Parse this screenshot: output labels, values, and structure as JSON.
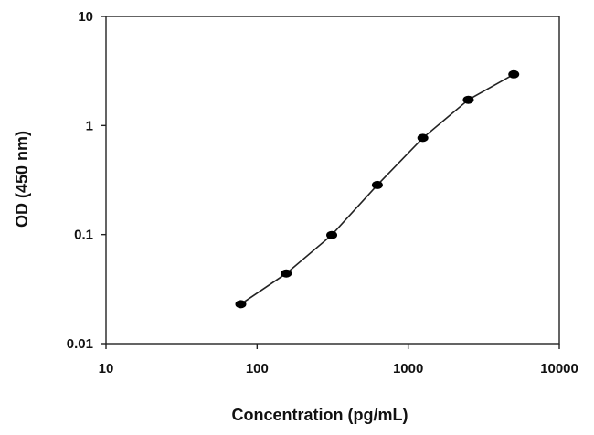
{
  "chart_data": {
    "type": "line",
    "title": "",
    "xlabel": "Concentration (pg/mL)",
    "ylabel": "OD (450 nm)",
    "xscale": "log",
    "yscale": "log",
    "xlim": [
      10,
      10000
    ],
    "ylim": [
      0.01,
      10
    ],
    "x_ticks": [
      "10",
      "100",
      "1000",
      "10000"
    ],
    "y_ticks": [
      "0.01",
      "0.1",
      "1",
      "10"
    ],
    "grid": false,
    "legend": "none",
    "series": [
      {
        "marker": "circle",
        "color": "#000000",
        "x": [
          78,
          156,
          312,
          625,
          1250,
          2500,
          5000
        ],
        "y": [
          0.023,
          0.044,
          0.099,
          0.285,
          0.77,
          1.72,
          2.95
        ]
      }
    ]
  }
}
